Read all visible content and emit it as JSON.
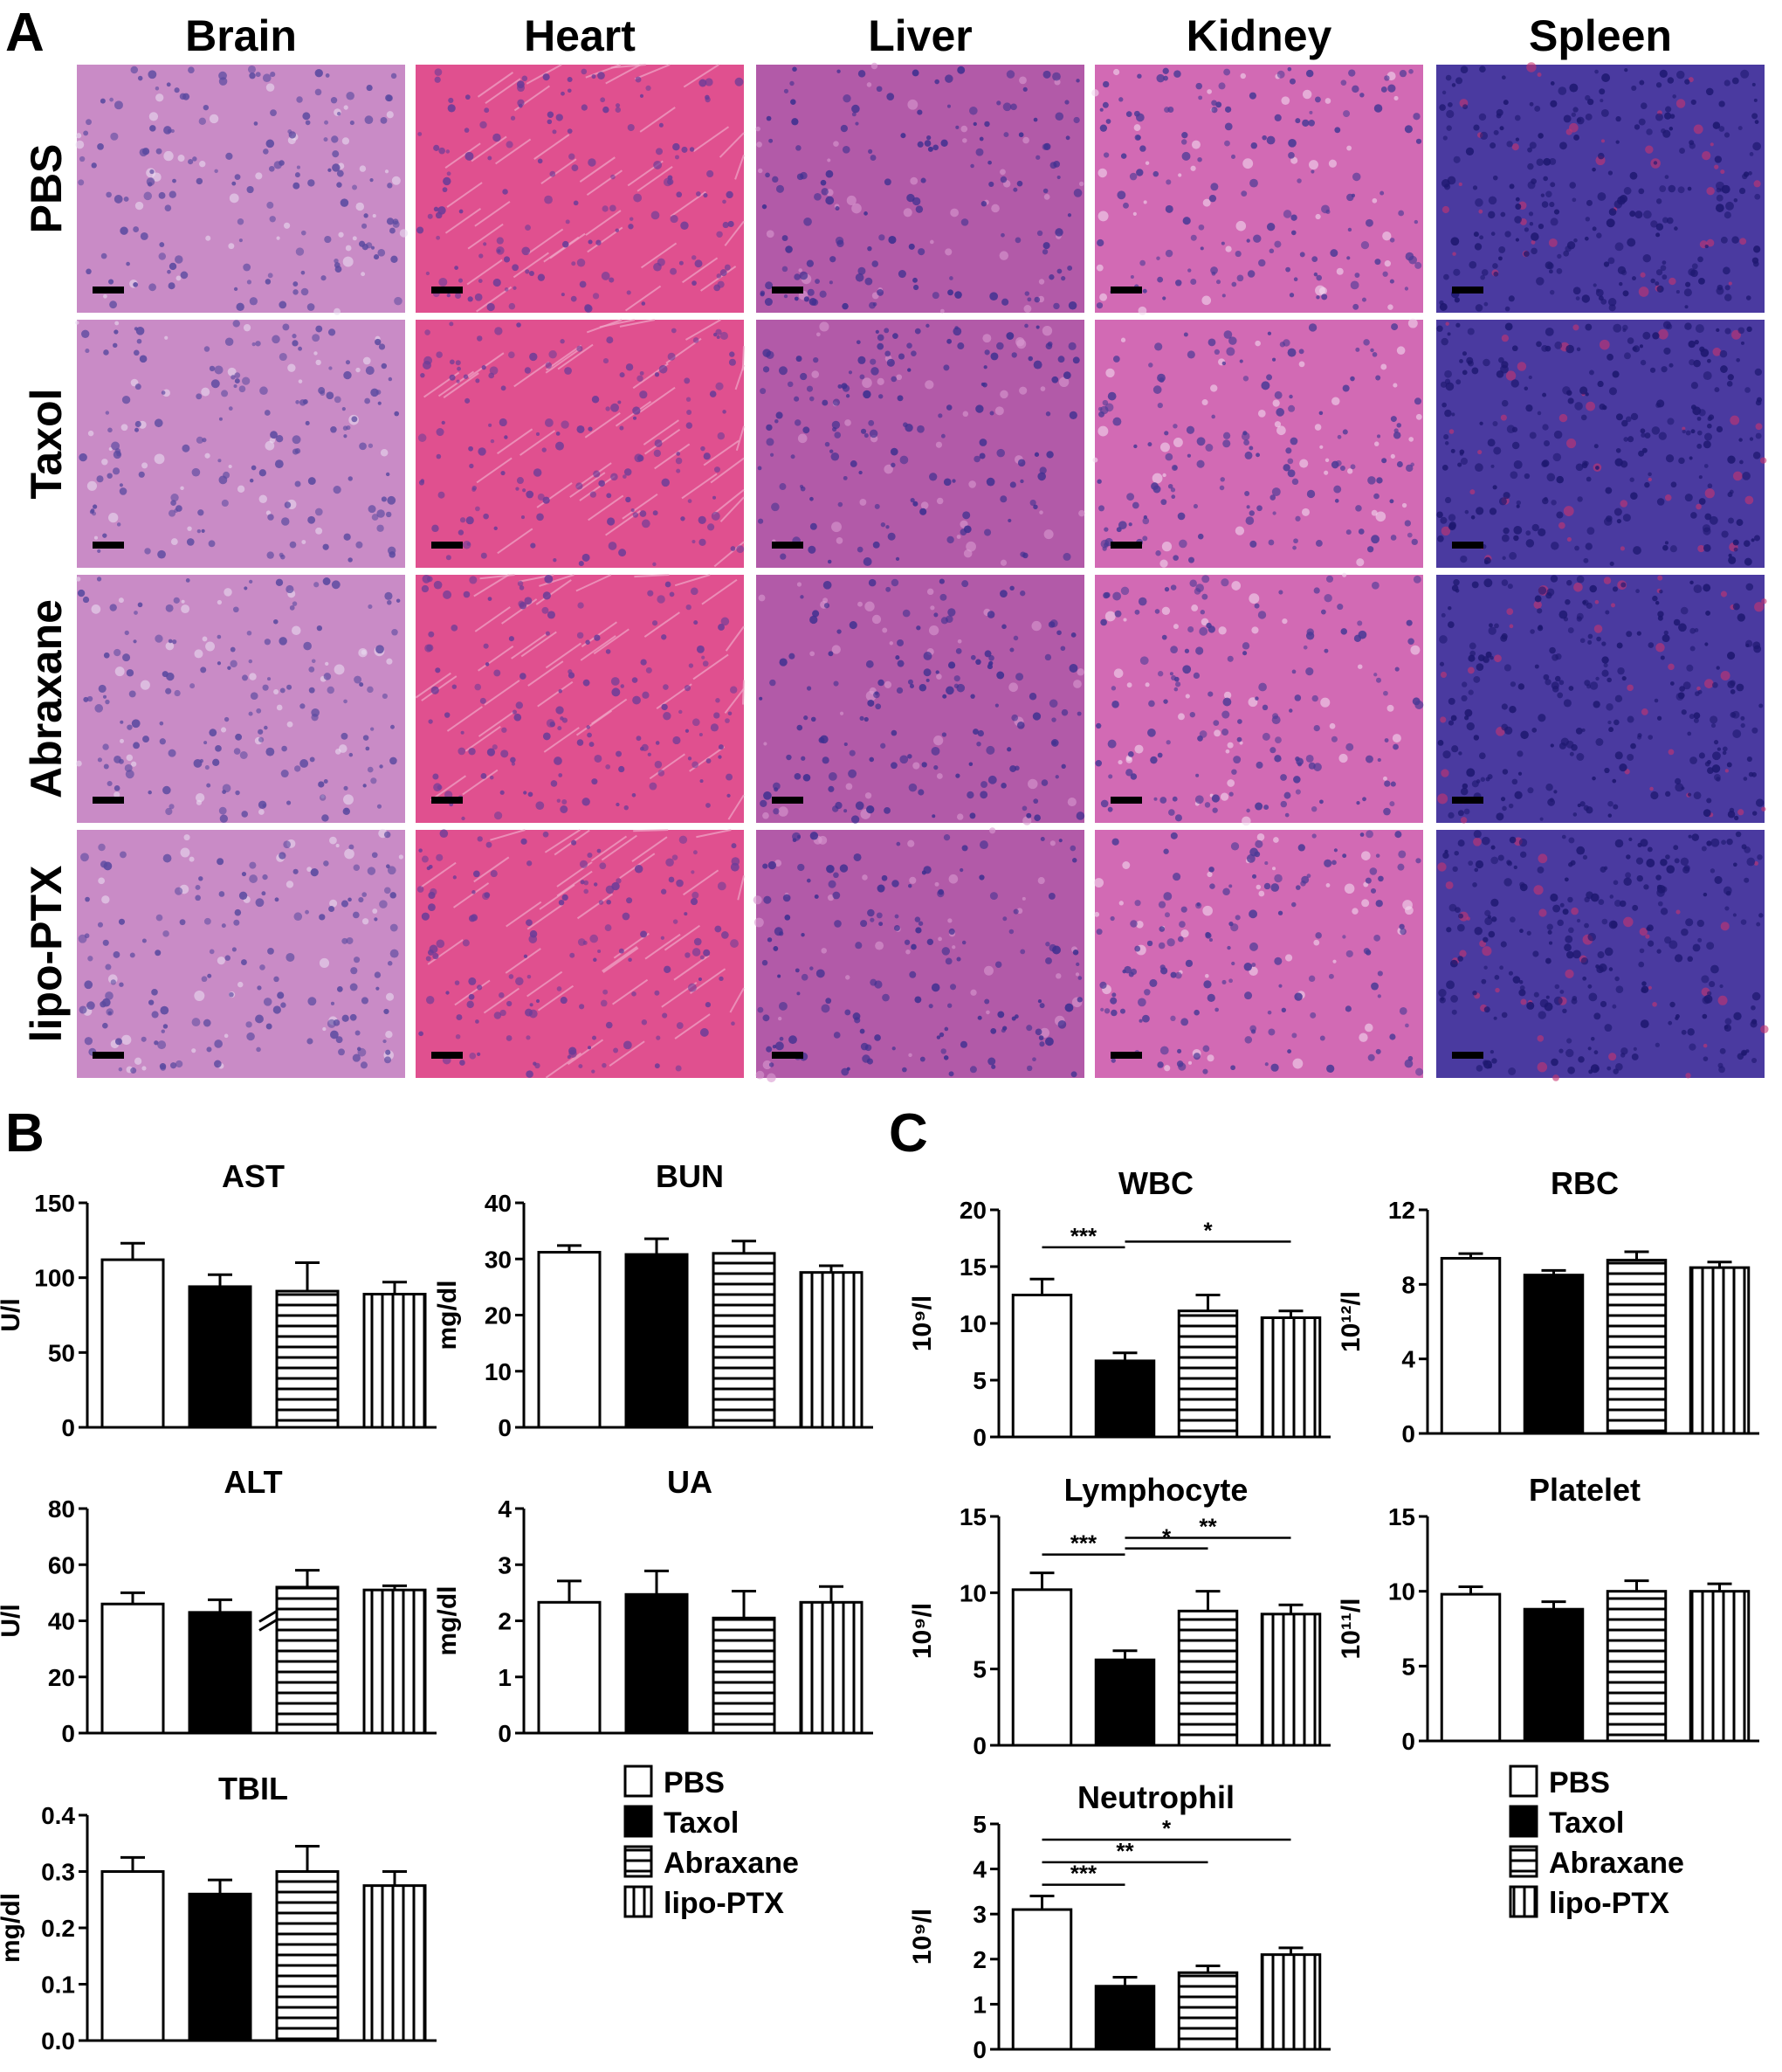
{
  "panel_labels": {
    "a": "A",
    "b": "B",
    "c": "C"
  },
  "histology": {
    "organs": [
      "Brain",
      "Heart",
      "Liver",
      "Kidney",
      "Spleen"
    ],
    "groups": [
      "PBS",
      "Taxol",
      "Abraxane",
      "lipo-PTX"
    ],
    "tissue_colors": {
      "Brain": {
        "base": "#c98bc6",
        "cell": "#5a4aa0",
        "accent": "#eadcf0"
      },
      "Heart": {
        "base": "#e0508f",
        "cell": "#6a3c98",
        "accent": "#f0a8c8"
      },
      "Liver": {
        "base": "#b25aa8",
        "cell": "#3e3090",
        "accent": "#d89ad0"
      },
      "Kidney": {
        "base": "#d26ab4",
        "cell": "#4a3a96",
        "accent": "#f2d8ee"
      },
      "Spleen": {
        "base": "#4a3aa0",
        "cell": "#1e1870",
        "accent": "#c8346e"
      }
    }
  },
  "legend_b": [
    "PBS",
    "Taxol",
    "Abraxane",
    "lipo-PTX"
  ],
  "legend_c": [
    "PBS",
    "Taxol",
    "Abraxane",
    "lipo-PTX"
  ],
  "chart_data": [
    {
      "id": "ast",
      "type": "bar",
      "title": "AST",
      "ylabel": "U/l",
      "ylim": [
        0,
        150
      ],
      "ticks": [
        "0",
        "50",
        "100",
        "150"
      ],
      "categories": [
        "PBS",
        "Taxol",
        "Abraxane",
        "lipo-PTX"
      ],
      "values": [
        112,
        94,
        91,
        89
      ],
      "errors": [
        11,
        8,
        19,
        8
      ],
      "sig": []
    },
    {
      "id": "bun",
      "type": "bar",
      "title": "BUN",
      "ylabel": "mg/dl",
      "ylim": [
        0,
        40
      ],
      "ticks": [
        "0",
        "10",
        "20",
        "30",
        "40"
      ],
      "categories": [
        "PBS",
        "Taxol",
        "Abraxane",
        "lipo-PTX"
      ],
      "values": [
        31.2,
        30.8,
        31,
        27.6
      ],
      "errors": [
        1.2,
        2.8,
        2.2,
        1.2
      ],
      "sig": []
    },
    {
      "id": "alt",
      "type": "bar",
      "title": "ALT",
      "ylabel": "U/l",
      "ylim": [
        0,
        80
      ],
      "ticks": [
        "0",
        "20",
        "40",
        "60",
        "80"
      ],
      "categories": [
        "PBS",
        "Taxol",
        "Abraxane",
        "lipo-PTX"
      ],
      "values": [
        46,
        43,
        52,
        51
      ],
      "errors": [
        4,
        4.5,
        6,
        1.5
      ],
      "sig": [],
      "axis_break": true
    },
    {
      "id": "ua",
      "type": "bar",
      "title": "UA",
      "ylabel": "mg/dl",
      "ylim": [
        0,
        4
      ],
      "ticks": [
        "0",
        "1",
        "2",
        "3",
        "4"
      ],
      "categories": [
        "PBS",
        "Taxol",
        "Abraxane",
        "lipo-PTX"
      ],
      "values": [
        2.33,
        2.47,
        2.05,
        2.33
      ],
      "errors": [
        0.38,
        0.42,
        0.48,
        0.28
      ],
      "sig": []
    },
    {
      "id": "tbil",
      "type": "bar",
      "title": "TBIL",
      "ylabel": "mg/dl",
      "ylim": [
        0,
        0.4
      ],
      "ticks": [
        "0.0",
        "0.1",
        "0.2",
        "0.3",
        "0.4"
      ],
      "categories": [
        "PBS",
        "Taxol",
        "Abraxane",
        "lipo-PTX"
      ],
      "values": [
        0.3,
        0.26,
        0.3,
        0.275
      ],
      "errors": [
        0.025,
        0.025,
        0.045,
        0.025
      ],
      "sig": []
    },
    {
      "id": "wbc",
      "type": "bar",
      "title": "WBC",
      "ylabel": "10⁹/l",
      "ylim": [
        0,
        20
      ],
      "ticks": [
        "0",
        "5",
        "10",
        "15",
        "20"
      ],
      "categories": [
        "PBS",
        "Taxol",
        "Abraxane",
        "lipo-PTX"
      ],
      "values": [
        12.5,
        6.7,
        11.1,
        10.5
      ],
      "errors": [
        1.4,
        0.7,
        1.4,
        0.6
      ],
      "sig": [
        {
          "from": 0,
          "to": 1,
          "label": "***",
          "y": 16.7
        },
        {
          "from": 1,
          "to": 3,
          "label": "*",
          "y": 17.2
        }
      ]
    },
    {
      "id": "rbc",
      "type": "bar",
      "title": "RBC",
      "ylabel": "10¹²/l",
      "ylim": [
        0,
        12
      ],
      "ticks": [
        "0",
        "4",
        "8",
        "12"
      ],
      "categories": [
        "PBS",
        "Taxol",
        "Abraxane",
        "lipo-PTX"
      ],
      "values": [
        9.4,
        8.5,
        9.3,
        8.9
      ],
      "errors": [
        0.25,
        0.25,
        0.45,
        0.3
      ],
      "sig": []
    },
    {
      "id": "lymphocyte",
      "type": "bar",
      "title": "Lymphocyte",
      "ylabel": "10⁹/l",
      "ylim": [
        0,
        15
      ],
      "ticks": [
        "0",
        "5",
        "10",
        "15"
      ],
      "categories": [
        "PBS",
        "Taxol",
        "Abraxane",
        "lipo-PTX"
      ],
      "values": [
        10.2,
        5.6,
        8.8,
        8.6
      ],
      "errors": [
        1.1,
        0.6,
        1.3,
        0.6
      ],
      "sig": [
        {
          "from": 0,
          "to": 1,
          "label": "***",
          "y": 12.5
        },
        {
          "from": 1,
          "to": 2,
          "label": "*",
          "y": 12.9
        },
        {
          "from": 1,
          "to": 3,
          "label": "**",
          "y": 13.6
        }
      ]
    },
    {
      "id": "platelet",
      "type": "bar",
      "title": "Platelet",
      "ylabel": "10¹¹/l",
      "ylim": [
        0,
        15
      ],
      "ticks": [
        "0",
        "5",
        "10",
        "15"
      ],
      "categories": [
        "PBS",
        "Taxol",
        "Abraxane",
        "lipo-PTX"
      ],
      "values": [
        9.8,
        8.8,
        10,
        10
      ],
      "errors": [
        0.5,
        0.5,
        0.7,
        0.5
      ],
      "sig": []
    },
    {
      "id": "neutrophil",
      "type": "bar",
      "title": "Neutrophil",
      "ylabel": "10⁹/l",
      "ylim": [
        0,
        5
      ],
      "ticks": [
        "0",
        "1",
        "2",
        "3",
        "4",
        "5"
      ],
      "categories": [
        "PBS",
        "Taxol",
        "Abraxane",
        "lipo-PTX"
      ],
      "values": [
        3.1,
        1.4,
        1.7,
        2.1
      ],
      "errors": [
        0.3,
        0.2,
        0.15,
        0.15
      ],
      "sig": [
        {
          "from": 0,
          "to": 1,
          "label": "***",
          "y": 3.65
        },
        {
          "from": 0,
          "to": 2,
          "label": "**",
          "y": 4.15
        },
        {
          "from": 0,
          "to": 3,
          "label": "*",
          "y": 4.65
        }
      ]
    }
  ]
}
